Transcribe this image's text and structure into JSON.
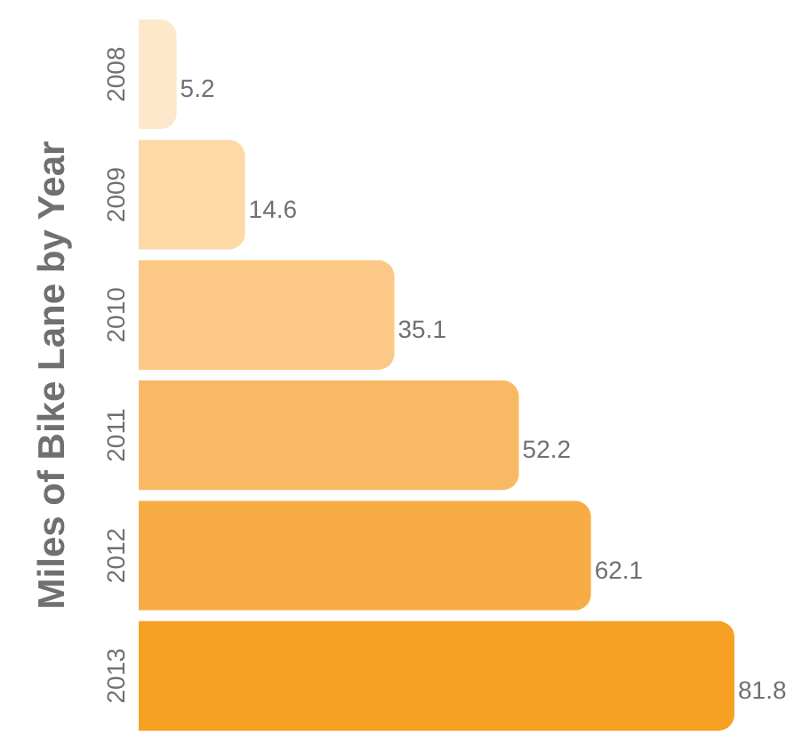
{
  "chart_data": {
    "type": "bar",
    "orientation": "horizontal",
    "ylabel": "Miles of Bike Lane by Year",
    "categories": [
      "2008",
      "2009",
      "2010",
      "2011",
      "2012",
      "2013"
    ],
    "values": [
      5.2,
      14.6,
      35.1,
      52.2,
      62.1,
      81.8
    ],
    "colors": [
      "#fde8cb",
      "#fcd9a6",
      "#fbc985",
      "#f9b964",
      "#f8ac45",
      "#f6a024"
    ],
    "data_labels": true
  }
}
